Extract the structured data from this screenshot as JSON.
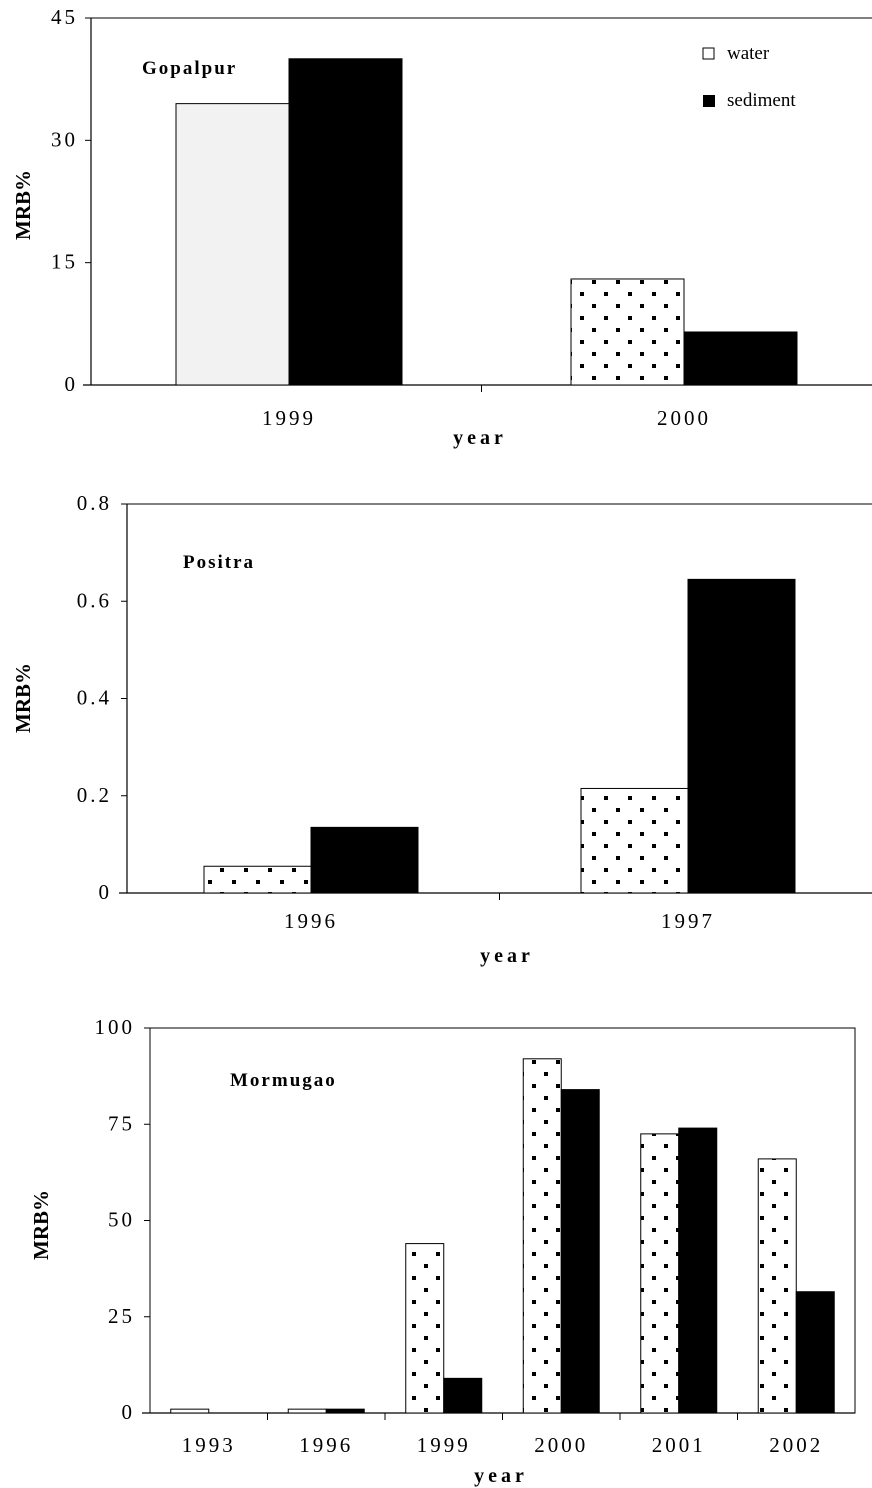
{
  "chart_data": [
    {
      "type": "bar",
      "title": "Gopalpur",
      "xlabel": "year",
      "ylabel": "MRB%",
      "ylim": [
        0,
        45
      ],
      "yticks": [
        "0",
        "15",
        "30",
        "45"
      ],
      "categories": [
        "1999",
        "2000"
      ],
      "legend": {
        "placement": "top-right",
        "entries": [
          "water",
          "sediment"
        ]
      },
      "series": [
        {
          "name": "water",
          "values": [
            34.5,
            13
          ]
        },
        {
          "name": "sediment",
          "values": [
            40,
            6.5
          ]
        }
      ]
    },
    {
      "type": "bar",
      "title": "Positra",
      "xlabel": "year",
      "ylabel": "MRB%",
      "ylim": [
        0,
        0.8
      ],
      "yticks": [
        "0",
        "0.2",
        "0.4",
        "0.6",
        "0.8"
      ],
      "categories": [
        "1996",
        "1997"
      ],
      "series": [
        {
          "name": "water",
          "values": [
            0.055,
            0.215
          ]
        },
        {
          "name": "sediment",
          "values": [
            0.135,
            0.645
          ]
        }
      ]
    },
    {
      "type": "bar",
      "title": "Mormugao",
      "xlabel": "year",
      "ylabel": "MRB%",
      "ylim": [
        0,
        100
      ],
      "yticks": [
        "0",
        "25",
        "50",
        "75",
        "100"
      ],
      "categories": [
        "1993",
        "1996",
        "1999",
        "2000",
        "2001",
        "2002"
      ],
      "series": [
        {
          "name": "water",
          "values": [
            1,
            1,
            44,
            92,
            72.5,
            66
          ]
        },
        {
          "name": "sediment",
          "values": [
            0,
            1,
            9,
            84,
            74,
            31.5
          ]
        }
      ]
    }
  ],
  "colors": {
    "sediment": "#000000",
    "water_outline": "#000000",
    "water_plain_fill": "#f2f2f2",
    "water_dotted_fill": "#ffffff"
  }
}
